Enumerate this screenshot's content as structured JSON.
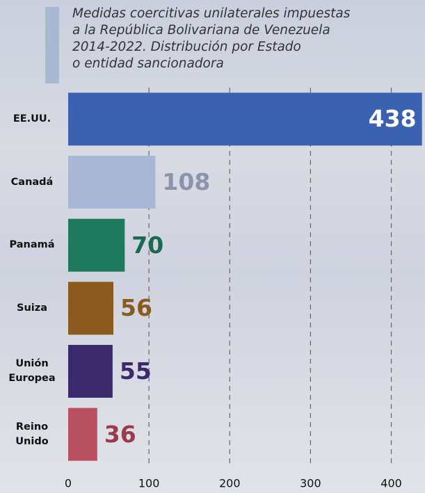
{
  "chart_data": {
    "type": "bar",
    "orientation": "horizontal",
    "title": [
      "Medidas coercitivas unilaterales impuestas",
      "a la República Bolivariana de Venezuela",
      "2014-2022. Distribución por Estado",
      "o entidad sancionadora"
    ],
    "categories": [
      "EE.UU.",
      "Canadá",
      "Panamá",
      "Suiza",
      "Unión Europea",
      "Reino Unido"
    ],
    "values": [
      438,
      108,
      70,
      56,
      55,
      36
    ],
    "colors": [
      "#3a62b0",
      "#a8b7d6",
      "#1f7a5d",
      "#8a5a1f",
      "#3b2a6b",
      "#b8505f"
    ],
    "label_colors": [
      "#ffffff",
      "#8a95ad",
      "#1a6a50",
      "#8a5a1f",
      "#3b2a6b",
      "#9a3a4a"
    ],
    "xlim": [
      0,
      440
    ],
    "xticks": [
      0,
      100,
      200,
      300,
      400
    ],
    "grid": true
  }
}
